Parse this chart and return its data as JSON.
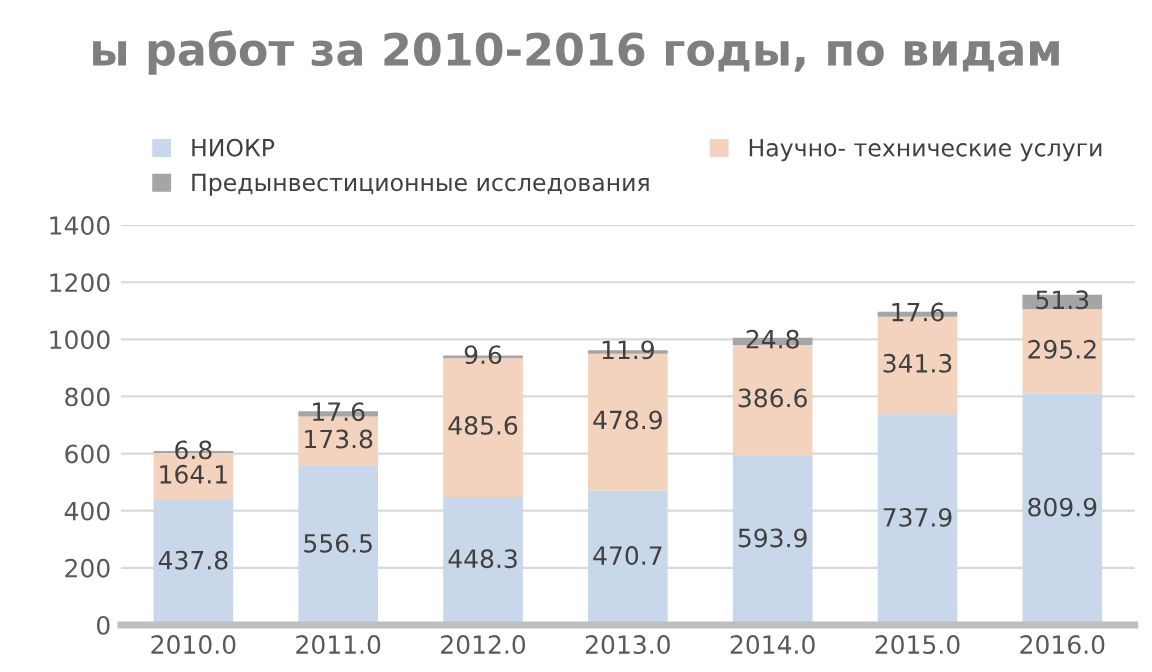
{
  "chart_data": {
    "type": "bar",
    "title": "ы работ за 2010-2016 годы, по видам",
    "categories": [
      "2010.0",
      "2011.0",
      "2012.0",
      "2013.0",
      "2014.0",
      "2015.0",
      "2016.0"
    ],
    "series": [
      {
        "name": "НИОКР",
        "color": "#c9d7ea",
        "values": [
          437.8,
          556.5,
          448.3,
          470.7,
          593.9,
          737.9,
          809.9
        ]
      },
      {
        "name": "Научно- технические услуги",
        "color": "#f3d3bd",
        "values": [
          164.1,
          173.8,
          485.6,
          478.9,
          386.6,
          341.3,
          295.2
        ]
      },
      {
        "name": "Предынвестиционные исследования",
        "color": "#a5a5a5",
        "values": [
          6.8,
          17.6,
          9.6,
          11.9,
          24.8,
          17.6,
          51.3
        ]
      }
    ],
    "stacked": true,
    "ylim": [
      0,
      1400
    ],
    "yticks": [
      0,
      200,
      400,
      600,
      800,
      1000,
      1200,
      1400
    ],
    "grid": "y",
    "legend": "top",
    "data_labels": true
  }
}
